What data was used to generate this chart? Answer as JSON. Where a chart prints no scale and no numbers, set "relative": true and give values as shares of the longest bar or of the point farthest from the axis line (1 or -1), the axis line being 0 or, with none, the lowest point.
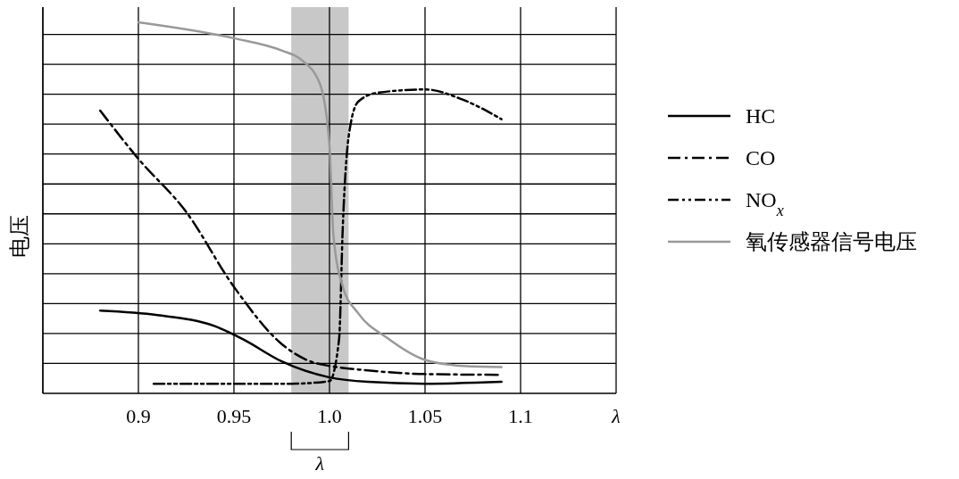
{
  "chart_data": {
    "type": "line",
    "relative": true,
    "xlabel": "λ",
    "ylabel": "电压",
    "xlim": [
      0.85,
      1.15
    ],
    "xticks": [
      {
        "value": 0.85,
        "label": null
      },
      0.9,
      0.95,
      {
        "value": 1.0,
        "label": "1.0"
      },
      1.05,
      1.1,
      {
        "value": 1.15,
        "label": null
      }
    ],
    "grid": true,
    "legend": "right",
    "annotations": [
      "λ"
    ],
    "bands": [
      {
        "axis": "x",
        "from": 0.98,
        "to": 1.01,
        "color": "#c8c8c8"
      }
    ],
    "series": [
      {
        "name": "HC",
        "color": "#000000",
        "line_style": "solid",
        "x": [
          0.88,
          0.91,
          0.94,
          0.955,
          0.975,
          1.0,
          1.02,
          1.05,
          1.09
        ],
        "values": [
          0.223,
          0.211,
          0.181,
          0.145,
          0.086,
          0.043,
          0.031,
          0.026,
          0.031
        ]
      },
      {
        "name": "CO",
        "color": "#000000",
        "line_style": "dashed",
        "x": [
          0.88,
          0.9,
          0.925,
          0.95,
          0.975,
          0.99,
          1.0,
          1.02,
          1.05,
          1.09
        ],
        "values": [
          0.762,
          0.632,
          0.489,
          0.287,
          0.133,
          0.086,
          0.074,
          0.062,
          0.052,
          0.05
        ]
      },
      {
        "name": "NO$_{x}$",
        "color": "#000000",
        "line_style": "dotted",
        "x": [
          0.908,
          0.95,
          0.98,
          1.0,
          1.005,
          1.007,
          1.01,
          1.015,
          1.025,
          1.05,
          1.07,
          1.09
        ],
        "values": [
          0.026,
          0.026,
          0.026,
          0.033,
          0.145,
          0.454,
          0.691,
          0.786,
          0.81,
          0.819,
          0.791,
          0.739
        ]
      },
      {
        "name": "氧传感器信号电压",
        "color": "#999999",
        "line_style": "solid",
        "x": [
          0.9,
          0.95,
          0.975,
          0.985,
          0.995,
          1.0,
          1.002,
          1.007,
          1.015,
          1.03,
          1.05,
          1.07,
          1.09
        ],
        "values": [
          1,
          0.957,
          0.924,
          0.9,
          0.834,
          0.667,
          0.43,
          0.287,
          0.216,
          0.15,
          0.09,
          0.074,
          0.071
        ]
      }
    ]
  }
}
